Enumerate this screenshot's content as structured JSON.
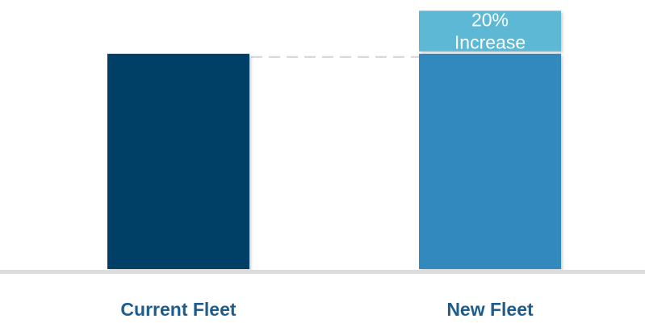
{
  "chart_data": {
    "type": "bar",
    "categories": [
      "Current Fleet",
      "New Fleet"
    ],
    "values": [
      100,
      120
    ],
    "ylim": [
      0,
      125
    ],
    "stacked_increase": {
      "category": "New Fleet",
      "value": 20,
      "label_line1": "20%",
      "label_line2": "Increase"
    },
    "grid": false,
    "legend": "none",
    "colors": {
      "current_fleet": "#003f66",
      "new_fleet": "#3389be",
      "increase": "#5bb8d4",
      "label_text": "#1d5c8f",
      "increase_text": "#ffffff",
      "baseline": "#dcdcdc",
      "reference_line": "#d3d3d3"
    }
  }
}
